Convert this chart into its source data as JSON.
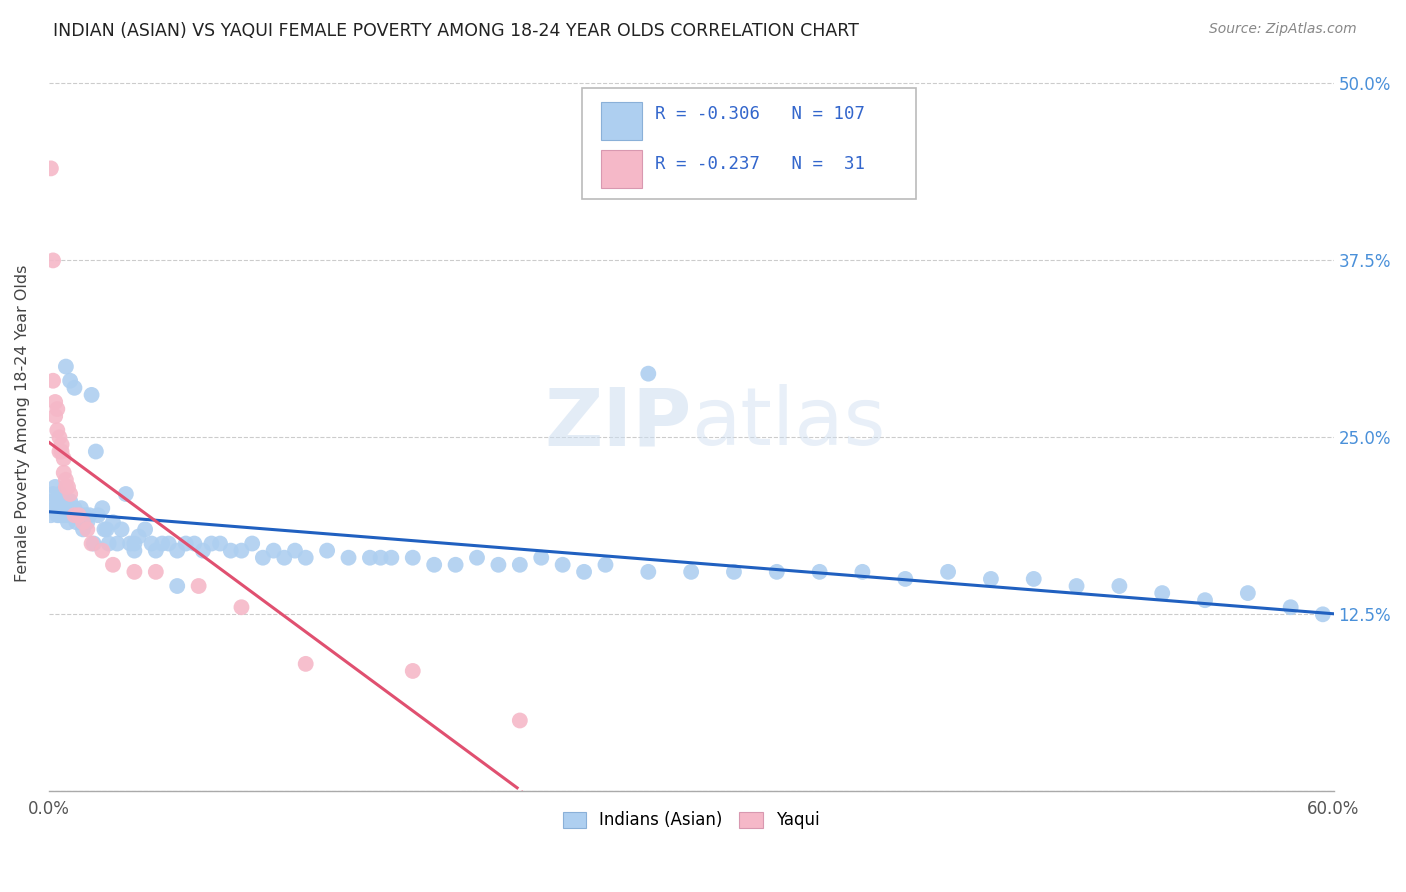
{
  "title": "INDIAN (ASIAN) VS YAQUI FEMALE POVERTY AMONG 18-24 YEAR OLDS CORRELATION CHART",
  "source": "Source: ZipAtlas.com",
  "ylabel": "Female Poverty Among 18-24 Year Olds",
  "xlim": [
    0.0,
    0.6
  ],
  "ylim": [
    0.0,
    0.52
  ],
  "R_indian": -0.306,
  "N_indian": 107,
  "R_yaqui": -0.237,
  "N_yaqui": 31,
  "indian_color": "#aecff0",
  "yaqui_color": "#f5b8c8",
  "indian_line_color": "#2060c0",
  "yaqui_line_color": "#e05070",
  "legend_label_indian": "Indians (Asian)",
  "legend_label_yaqui": "Yaqui",
  "watermark_zip": "ZIP",
  "watermark_atlas": "atlas",
  "indian_x": [
    0.001,
    0.002,
    0.002,
    0.003,
    0.003,
    0.004,
    0.004,
    0.005,
    0.005,
    0.005,
    0.006,
    0.006,
    0.006,
    0.007,
    0.007,
    0.007,
    0.008,
    0.008,
    0.009,
    0.009,
    0.01,
    0.01,
    0.01,
    0.011,
    0.011,
    0.012,
    0.012,
    0.013,
    0.014,
    0.015,
    0.015,
    0.016,
    0.017,
    0.018,
    0.019,
    0.02,
    0.021,
    0.022,
    0.023,
    0.025,
    0.026,
    0.027,
    0.028,
    0.03,
    0.032,
    0.034,
    0.036,
    0.038,
    0.04,
    0.042,
    0.045,
    0.048,
    0.05,
    0.053,
    0.056,
    0.06,
    0.064,
    0.068,
    0.072,
    0.076,
    0.08,
    0.085,
    0.09,
    0.095,
    0.1,
    0.105,
    0.11,
    0.115,
    0.12,
    0.13,
    0.14,
    0.15,
    0.155,
    0.16,
    0.17,
    0.18,
    0.19,
    0.2,
    0.21,
    0.22,
    0.23,
    0.24,
    0.25,
    0.26,
    0.28,
    0.3,
    0.32,
    0.34,
    0.36,
    0.38,
    0.4,
    0.42,
    0.44,
    0.46,
    0.48,
    0.5,
    0.52,
    0.54,
    0.56,
    0.58,
    0.595,
    0.008,
    0.01,
    0.012,
    0.28,
    0.04,
    0.06
  ],
  "indian_y": [
    0.195,
    0.205,
    0.21,
    0.2,
    0.215,
    0.195,
    0.205,
    0.2,
    0.21,
    0.195,
    0.2,
    0.195,
    0.205,
    0.2,
    0.195,
    0.205,
    0.195,
    0.2,
    0.19,
    0.2,
    0.2,
    0.205,
    0.195,
    0.2,
    0.195,
    0.195,
    0.2,
    0.19,
    0.195,
    0.195,
    0.2,
    0.185,
    0.195,
    0.19,
    0.195,
    0.28,
    0.175,
    0.24,
    0.195,
    0.2,
    0.185,
    0.185,
    0.175,
    0.19,
    0.175,
    0.185,
    0.21,
    0.175,
    0.175,
    0.18,
    0.185,
    0.175,
    0.17,
    0.175,
    0.175,
    0.17,
    0.175,
    0.175,
    0.17,
    0.175,
    0.175,
    0.17,
    0.17,
    0.175,
    0.165,
    0.17,
    0.165,
    0.17,
    0.165,
    0.17,
    0.165,
    0.165,
    0.165,
    0.165,
    0.165,
    0.16,
    0.16,
    0.165,
    0.16,
    0.16,
    0.165,
    0.16,
    0.155,
    0.16,
    0.155,
    0.155,
    0.155,
    0.155,
    0.155,
    0.155,
    0.15,
    0.155,
    0.15,
    0.15,
    0.145,
    0.145,
    0.14,
    0.135,
    0.14,
    0.13,
    0.125,
    0.3,
    0.29,
    0.285,
    0.295,
    0.17,
    0.145
  ],
  "yaqui_x": [
    0.001,
    0.002,
    0.002,
    0.003,
    0.003,
    0.004,
    0.004,
    0.005,
    0.005,
    0.006,
    0.006,
    0.007,
    0.007,
    0.008,
    0.008,
    0.009,
    0.01,
    0.012,
    0.014,
    0.016,
    0.018,
    0.02,
    0.025,
    0.03,
    0.04,
    0.05,
    0.07,
    0.09,
    0.12,
    0.17,
    0.22
  ],
  "yaqui_y": [
    0.44,
    0.375,
    0.29,
    0.275,
    0.265,
    0.27,
    0.255,
    0.25,
    0.24,
    0.245,
    0.24,
    0.235,
    0.225,
    0.22,
    0.215,
    0.215,
    0.21,
    0.195,
    0.195,
    0.19,
    0.185,
    0.175,
    0.17,
    0.16,
    0.155,
    0.155,
    0.145,
    0.13,
    0.09,
    0.085,
    0.05
  ]
}
